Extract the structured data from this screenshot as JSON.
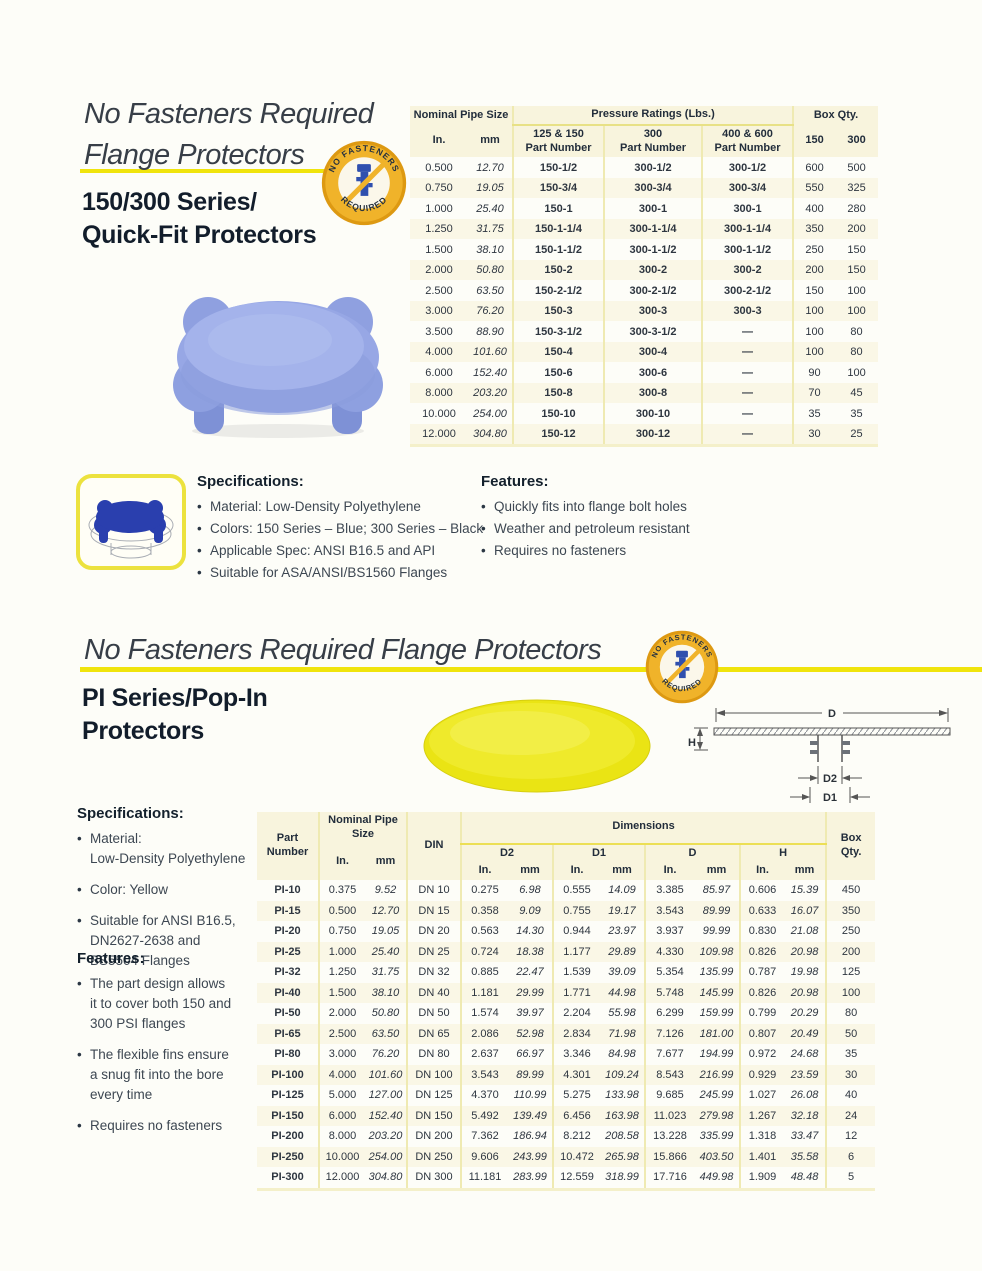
{
  "badge": {
    "top": "NO FASTENERS",
    "bottom": "REQUIRED"
  },
  "section1": {
    "title": "No Fasteners Required\nFlange Protectors",
    "subtitle": "150/300 Series/\nQuick-Fit Protectors",
    "table": {
      "nominal": "Nominal Pipe Size",
      "in": "In.",
      "mm": "mm",
      "pressure": "Pressure Ratings (Lbs.)",
      "group1": "125 & 150\nPart Number",
      "group2": "300\nPart Number",
      "group3": "400 & 600\nPart Number",
      "box": "Box Qty.",
      "box150": "150",
      "box300": "300",
      "rows": [
        [
          "0.500",
          "12.70",
          "150-1/2",
          "300-1/2",
          "300-1/2",
          "600",
          "500"
        ],
        [
          "0.750",
          "19.05",
          "150-3/4",
          "300-3/4",
          "300-3/4",
          "550",
          "325"
        ],
        [
          "1.000",
          "25.40",
          "150-1",
          "300-1",
          "300-1",
          "400",
          "280"
        ],
        [
          "1.250",
          "31.75",
          "150-1-1/4",
          "300-1-1/4",
          "300-1-1/4",
          "350",
          "200"
        ],
        [
          "1.500",
          "38.10",
          "150-1-1/2",
          "300-1-1/2",
          "300-1-1/2",
          "250",
          "150"
        ],
        [
          "2.000",
          "50.80",
          "150-2",
          "300-2",
          "300-2",
          "200",
          "150"
        ],
        [
          "2.500",
          "63.50",
          "150-2-1/2",
          "300-2-1/2",
          "300-2-1/2",
          "150",
          "100"
        ],
        [
          "3.000",
          "76.20",
          "150-3",
          "300-3",
          "300-3",
          "100",
          "100"
        ],
        [
          "3.500",
          "88.90",
          "150-3-1/2",
          "300-3-1/2",
          "—",
          "100",
          "80"
        ],
        [
          "4.000",
          "101.60",
          "150-4",
          "300-4",
          "—",
          "100",
          "80"
        ],
        [
          "6.000",
          "152.40",
          "150-6",
          "300-6",
          "—",
          "90",
          "100"
        ],
        [
          "8.000",
          "203.20",
          "150-8",
          "300-8",
          "—",
          "70",
          "45"
        ],
        [
          "10.000",
          "254.00",
          "150-10",
          "300-10",
          "—",
          "35",
          "35"
        ],
        [
          "12.000",
          "304.80",
          "150-12",
          "300-12",
          "—",
          "30",
          "25"
        ]
      ]
    },
    "specs": {
      "title": "Specifications:",
      "items": [
        "Material: Low-Density Polyethylene",
        "Colors: 150 Series – Blue; 300 Series – Black",
        "Applicable Spec: ANSI B16.5 and API",
        "Suitable for ASA/ANSI/BS1560 Flanges"
      ]
    },
    "features": {
      "title": "Features:",
      "items": [
        "Quickly fits into flange bolt holes",
        "Weather and petroleum resistant",
        "Requires no fasteners"
      ]
    }
  },
  "section2": {
    "title": "No Fasteners Required Flange Protectors",
    "subtitle": "PI Series/Pop-In\nProtectors",
    "diagram": {
      "d": "D",
      "h": "H",
      "d2": "D2",
      "d1": "D1"
    },
    "specs": {
      "title": "Specifications:",
      "items": [
        "Material:\nLow-Density Polyethylene",
        "Color: Yellow",
        "Suitable for ANSI B16.5,\nDN2627-2638 and\nBS5504 Flanges"
      ]
    },
    "features": {
      "title": "Features:",
      "items": [
        "The part design allows\nit to cover both 150 and\n300 PSI flanges",
        "The flexible fins ensure\na snug fit into the bore\nevery time",
        "Requires no fasteners"
      ]
    },
    "table": {
      "part": "Part\nNumber",
      "nominal": "Nominal Pipe Size",
      "in": "In.",
      "mm": "mm",
      "din": "DIN",
      "dimensions": "Dimensions",
      "d2": "D2",
      "d1": "D1",
      "d": "D",
      "h": "H",
      "box": "Box\nQty.",
      "rows": [
        [
          "PI-10",
          "0.375",
          "9.52",
          "DN 10",
          "0.275",
          "6.98",
          "0.555",
          "14.09",
          "3.385",
          "85.97",
          "0.606",
          "15.39",
          "450"
        ],
        [
          "PI-15",
          "0.500",
          "12.70",
          "DN 15",
          "0.358",
          "9.09",
          "0.755",
          "19.17",
          "3.543",
          "89.99",
          "0.633",
          "16.07",
          "350"
        ],
        [
          "PI-20",
          "0.750",
          "19.05",
          "DN 20",
          "0.563",
          "14.30",
          "0.944",
          "23.97",
          "3.937",
          "99.99",
          "0.830",
          "21.08",
          "250"
        ],
        [
          "PI-25",
          "1.000",
          "25.40",
          "DN 25",
          "0.724",
          "18.38",
          "1.177",
          "29.89",
          "4.330",
          "109.98",
          "0.826",
          "20.98",
          "200"
        ],
        [
          "PI-32",
          "1.250",
          "31.75",
          "DN 32",
          "0.885",
          "22.47",
          "1.539",
          "39.09",
          "5.354",
          "135.99",
          "0.787",
          "19.98",
          "125"
        ],
        [
          "PI-40",
          "1.500",
          "38.10",
          "DN 40",
          "1.181",
          "29.99",
          "1.771",
          "44.98",
          "5.748",
          "145.99",
          "0.826",
          "20.98",
          "100"
        ],
        [
          "PI-50",
          "2.000",
          "50.80",
          "DN 50",
          "1.574",
          "39.97",
          "2.204",
          "55.98",
          "6.299",
          "159.99",
          "0.799",
          "20.29",
          "80"
        ],
        [
          "PI-65",
          "2.500",
          "63.50",
          "DN 65",
          "2.086",
          "52.98",
          "2.834",
          "71.98",
          "7.126",
          "181.00",
          "0.807",
          "20.49",
          "50"
        ],
        [
          "PI-80",
          "3.000",
          "76.20",
          "DN 80",
          "2.637",
          "66.97",
          "3.346",
          "84.98",
          "7.677",
          "194.99",
          "0.972",
          "24.68",
          "35"
        ],
        [
          "PI-100",
          "4.000",
          "101.60",
          "DN 100",
          "3.543",
          "89.99",
          "4.301",
          "109.24",
          "8.543",
          "216.99",
          "0.929",
          "23.59",
          "30"
        ],
        [
          "PI-125",
          "5.000",
          "127.00",
          "DN 125",
          "4.370",
          "110.99",
          "5.275",
          "133.98",
          "9.685",
          "245.99",
          "1.027",
          "26.08",
          "40"
        ],
        [
          "PI-150",
          "6.000",
          "152.40",
          "DN 150",
          "5.492",
          "139.49",
          "6.456",
          "163.98",
          "11.023",
          "279.98",
          "1.267",
          "32.18",
          "24"
        ],
        [
          "PI-200",
          "8.000",
          "203.20",
          "DN 200",
          "7.362",
          "186.94",
          "8.212",
          "208.58",
          "13.228",
          "335.99",
          "1.318",
          "33.47",
          "12"
        ],
        [
          "PI-250",
          "10.000",
          "254.00",
          "DN 250",
          "9.606",
          "243.99",
          "10.472",
          "265.98",
          "15.866",
          "403.50",
          "1.401",
          "35.58",
          "6"
        ],
        [
          "PI-300",
          "12.000",
          "304.80",
          "DN 300",
          "11.181",
          "283.99",
          "12.559",
          "318.99",
          "17.716",
          "449.98",
          "1.909",
          "48.48",
          "5"
        ]
      ]
    }
  },
  "colors": {
    "accent_yellow": "#f0e40c",
    "badge_gold": "#f0b32a",
    "protector_blue": "#97a7e5",
    "protector_yellow": "#eae414",
    "row_cream": "#faf7e6",
    "text_dark": "#1c2735"
  }
}
